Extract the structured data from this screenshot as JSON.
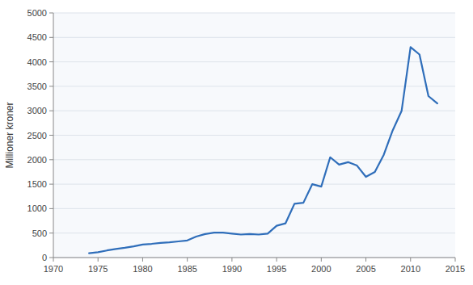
{
  "chart_data": {
    "type": "line",
    "y_label": "Millioner kroner",
    "x": [
      1974,
      1975,
      1976,
      1977,
      1978,
      1979,
      1980,
      1981,
      1982,
      1983,
      1984,
      1985,
      1986,
      1987,
      1988,
      1989,
      1990,
      1991,
      1992,
      1993,
      1994,
      1995,
      1996,
      1997,
      1998,
      1999,
      2000,
      2001,
      2002,
      2003,
      2004,
      2005,
      2006,
      2007,
      2008,
      2009,
      2010,
      2011,
      2012,
      2013
    ],
    "values": [
      90,
      110,
      145,
      175,
      200,
      230,
      265,
      280,
      300,
      310,
      330,
      350,
      430,
      480,
      510,
      510,
      490,
      470,
      480,
      470,
      490,
      650,
      700,
      1100,
      1120,
      1500,
      1450,
      2050,
      1900,
      1950,
      1880,
      1650,
      1750,
      2100,
      2600,
      3000,
      4300,
      4150,
      3300,
      3150
    ],
    "color": "#2F6EBA",
    "xlim": [
      1970,
      2015
    ],
    "ylim": [
      0,
      5000
    ],
    "xticks": [
      1970,
      1975,
      1980,
      1985,
      1990,
      1995,
      2000,
      2005,
      2010,
      2015
    ],
    "yticks": [
      0,
      500,
      1000,
      1500,
      2000,
      2500,
      3000,
      3500,
      4000,
      4500,
      5000
    ],
    "grid": true
  }
}
